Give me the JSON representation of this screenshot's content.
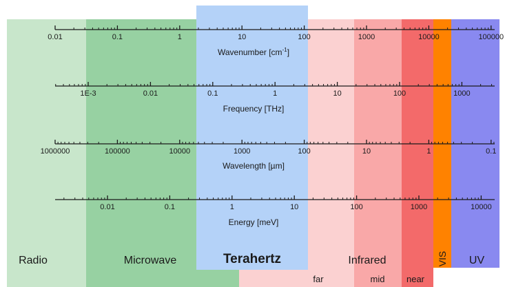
{
  "colors": {
    "radio": "#c8e6cb",
    "microwave": "#97d1a2",
    "terahertz": "#b4d2f8",
    "far": "#fbd1d1",
    "mid": "#f9a8a8",
    "near": "#f36a6a",
    "vis": "#ff8200",
    "uv": "#8989f0",
    "axis": "#1a1a1a"
  },
  "regions": {
    "radio": "Radio",
    "microwave": "Microwave",
    "terahertz": "Terahertz",
    "infrared": "Infrared",
    "vis": "VIS",
    "uv": "UV",
    "far": "far",
    "mid": "mid",
    "near": "near"
  },
  "axes": [
    {
      "label": "Wavenumber [cm",
      "label_sup": "-1",
      "label_end": "]",
      "ticks": [
        "0.01",
        "0.1",
        "1",
        "10",
        "100",
        "1000",
        "10000",
        "100000"
      ]
    },
    {
      "label": "Frequency [THz]",
      "ticks": [
        "1E-3",
        "0.01",
        "0.1",
        "1",
        "10",
        "100",
        "1000"
      ]
    },
    {
      "label": "Wavelength [µm]",
      "ticks": [
        "1000000",
        "100000",
        "10000",
        "1000",
        "100",
        "10",
        "1",
        "0.1"
      ]
    },
    {
      "label": "Energy [meV]",
      "ticks": [
        "0.01",
        "0.1",
        "1",
        "10",
        "100",
        "1000",
        "10000"
      ]
    }
  ]
}
